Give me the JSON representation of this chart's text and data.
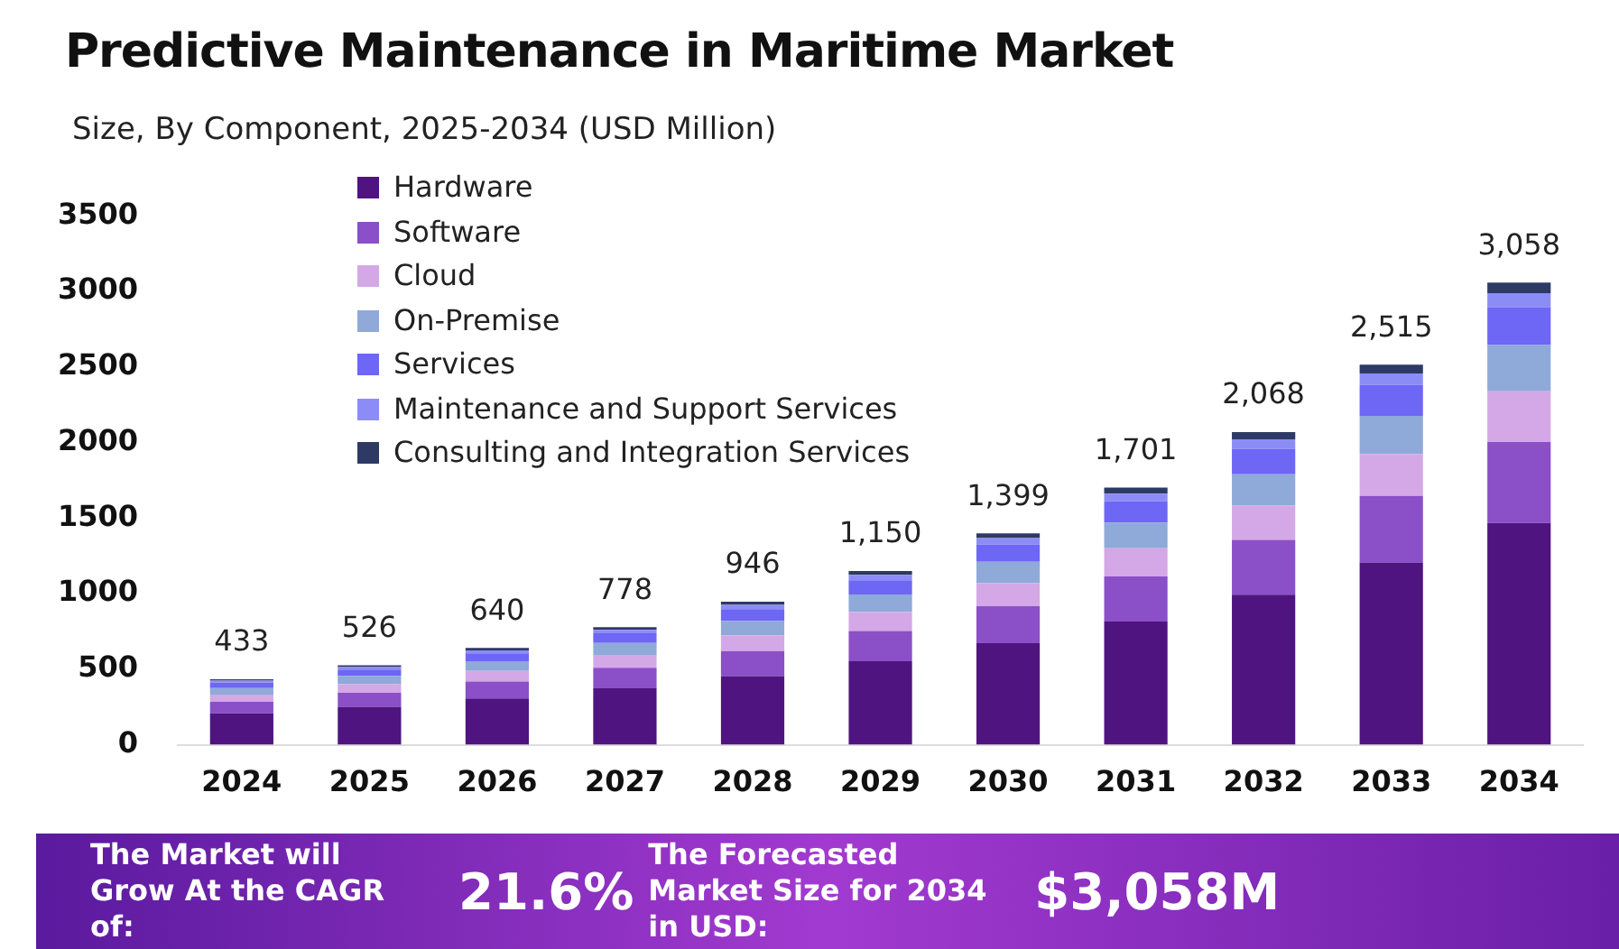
{
  "chart_data": {
    "type": "bar",
    "title": "Predictive Maintenance in Maritime Market",
    "subtitle": "Size, By Component, 2025-2034 (USD Million)",
    "categories": [
      "2024",
      "2025",
      "2026",
      "2027",
      "2028",
      "2029",
      "2030",
      "2031",
      "2032",
      "2033",
      "2034"
    ],
    "stacked": true,
    "ylim": [
      0,
      3500
    ],
    "yticks": [
      0,
      500,
      1000,
      1500,
      2000,
      2500,
      3000,
      3500
    ],
    "grid": false,
    "legend": "top left",
    "series": [
      {
        "name": "Hardware",
        "color": "#4f1480",
        "values": [
          208,
          252,
          307,
          373,
          454,
          552,
          672,
          816,
          993,
          1207,
          1468
        ]
      },
      {
        "name": "Software",
        "color": "#8b4fc8",
        "values": [
          76,
          92,
          112,
          136,
          166,
          201,
          245,
          298,
          362,
          440,
          535
        ]
      },
      {
        "name": "Cloud",
        "color": "#d4a8e6",
        "values": [
          48,
          58,
          70,
          86,
          104,
          127,
          154,
          187,
          227,
          277,
          336
        ]
      },
      {
        "name": "On-Premise",
        "color": "#8fa9d8",
        "values": [
          43,
          53,
          64,
          78,
          95,
          115,
          140,
          170,
          207,
          252,
          306
        ]
      },
      {
        "name": "Services",
        "color": "#6e66f5",
        "values": [
          36,
          43,
          52,
          64,
          78,
          94,
          115,
          139,
          170,
          206,
          251
        ]
      },
      {
        "name": "Maintenance and Support Services",
        "color": "#8c8cf7",
        "values": [
          13,
          16,
          19,
          23,
          28,
          35,
          42,
          51,
          62,
          75,
          92
        ]
      },
      {
        "name": "Consulting and Integration Services",
        "color": "#2e3a66",
        "values": [
          9,
          12,
          16,
          18,
          21,
          26,
          31,
          40,
          47,
          58,
          70
        ]
      }
    ],
    "totals": [
      "433",
      "526",
      "640",
      "778",
      "946",
      "1,150",
      "1,399",
      "1,701",
      "2,068",
      "2,515",
      "3,058"
    ],
    "annotations": [
      "The Market will Grow At the CAGR of:",
      "21.6%",
      "The Forecasted Market Size for 2034 in USD:",
      "$3,058M"
    ]
  }
}
